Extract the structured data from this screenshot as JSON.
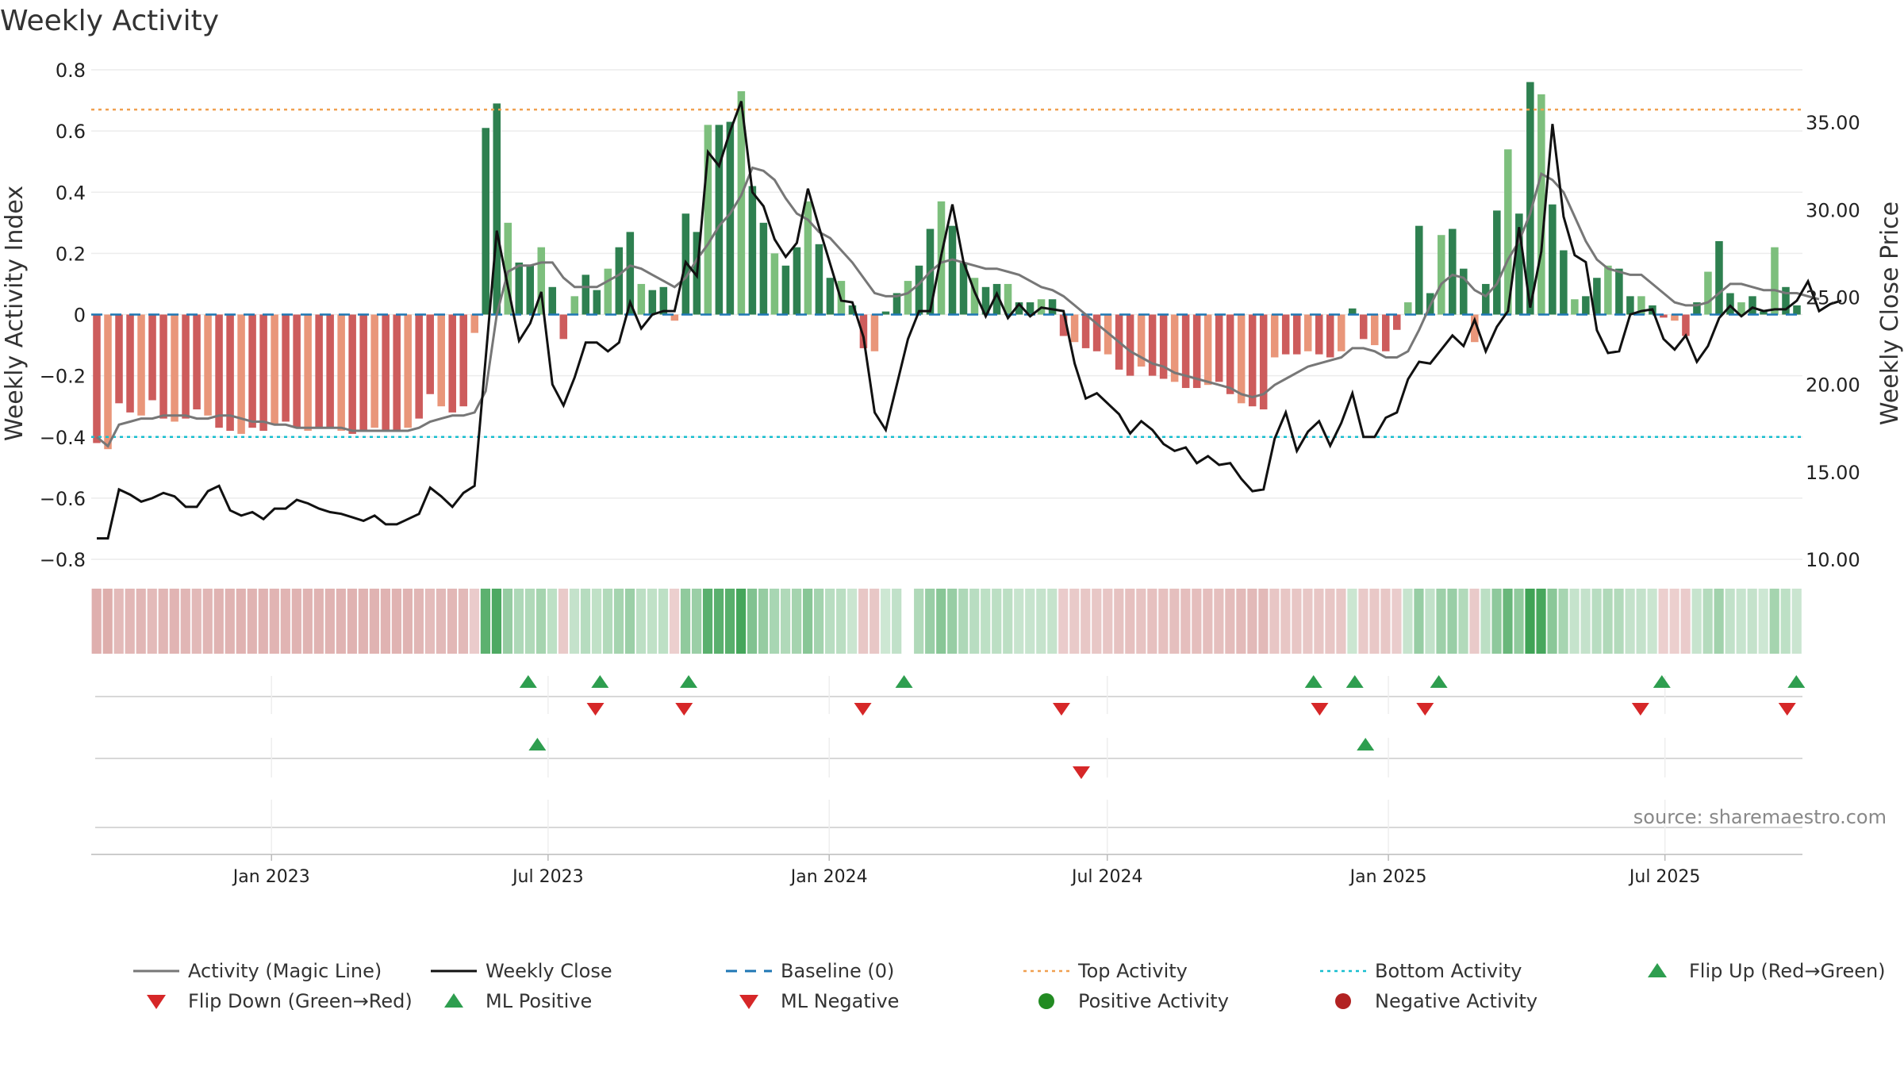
{
  "chart_data": {
    "type": "bar+line",
    "title": "Weekly Activity",
    "ylabel_left": "Weekly Activity Index",
    "ylabel_right": "Weekly Close Price",
    "ylim_left": [
      -0.8,
      0.8
    ],
    "ylim_right": [
      10,
      38
    ],
    "left_ticks": [
      0.8,
      0.6,
      0.4,
      0.2,
      0,
      -0.2,
      -0.4,
      -0.6,
      -0.8
    ],
    "left_tick_labels": [
      "0.8",
      "0.6",
      "0.4",
      "0.2",
      "0",
      "−0.2",
      "−0.4",
      "−0.6",
      "−0.8"
    ],
    "right_ticks": [
      35,
      30,
      25,
      20,
      15,
      10
    ],
    "right_tick_labels": [
      "35.00",
      "30.00",
      "25.00",
      "20.00",
      "15.00",
      "10.00"
    ],
    "x_start": "2022-09-05",
    "x_end": "2025-09-29",
    "x_tick_dates": [
      "2023-01-01",
      "2023-07-01",
      "2024-01-01",
      "2024-07-01",
      "2025-01-01",
      "2025-07-01"
    ],
    "x_tick_labels": [
      "Jan 2023",
      "Jul 2023",
      "Jan 2024",
      "Jul 2024",
      "Jan 2025",
      "Jul 2025"
    ],
    "top_activity": 0.67,
    "bottom_activity": -0.4,
    "baseline": 0,
    "activity_bars": [
      -0.42,
      -0.44,
      -0.29,
      -0.32,
      -0.33,
      -0.28,
      -0.34,
      -0.35,
      -0.34,
      -0.31,
      -0.33,
      -0.37,
      -0.38,
      -0.39,
      -0.37,
      -0.38,
      -0.36,
      -0.35,
      -0.37,
      -0.38,
      -0.37,
      -0.37,
      -0.38,
      -0.39,
      -0.38,
      -0.37,
      -0.38,
      -0.38,
      -0.37,
      -0.34,
      -0.26,
      -0.3,
      -0.32,
      -0.3,
      -0.06,
      0.61,
      0.69,
      0.3,
      0.17,
      0.16,
      0.22,
      0.09,
      -0.08,
      0.06,
      0.13,
      0.08,
      0.15,
      0.22,
      0.27,
      0.1,
      0.08,
      0.09,
      -0.02,
      0.33,
      0.27,
      0.62,
      0.62,
      0.63,
      0.73,
      0.42,
      0.3,
      0.2,
      0.16,
      0.22,
      0.37,
      0.23,
      0.12,
      0.11,
      0.03,
      -0.11,
      -0.12,
      0.01,
      0.07,
      0.11,
      0.16,
      0.28,
      0.37,
      0.29,
      0.17,
      0.12,
      0.09,
      0.1,
      0.1,
      0.04,
      0.04,
      0.05,
      0.05,
      -0.07,
      -0.09,
      -0.11,
      -0.12,
      -0.13,
      -0.18,
      -0.2,
      -0.17,
      -0.2,
      -0.21,
      -0.22,
      -0.24,
      -0.24,
      -0.23,
      -0.22,
      -0.26,
      -0.29,
      -0.3,
      -0.31,
      -0.14,
      -0.13,
      -0.13,
      -0.12,
      -0.13,
      -0.14,
      -0.12,
      0.02,
      -0.08,
      -0.1,
      -0.12,
      -0.05,
      0.04,
      0.29,
      0.07,
      0.26,
      0.28,
      0.15,
      -0.09,
      0.1,
      0.34,
      0.54,
      0.33,
      0.76,
      0.72,
      0.36,
      0.21,
      0.05,
      0.06,
      0.12,
      0.16,
      0.15,
      0.06,
      0.06,
      0.03,
      -0.01,
      -0.02,
      -0.07,
      0.04,
      0.14,
      0.24,
      0.07,
      0.04,
      0.06,
      0.01,
      0.22,
      0.09,
      0.03
    ],
    "magic_line": [
      -0.4,
      -0.43,
      -0.36,
      -0.35,
      -0.34,
      -0.34,
      -0.33,
      -0.33,
      -0.33,
      -0.34,
      -0.34,
      -0.33,
      -0.33,
      -0.34,
      -0.35,
      -0.35,
      -0.36,
      -0.36,
      -0.37,
      -0.37,
      -0.37,
      -0.37,
      -0.37,
      -0.38,
      -0.38,
      -0.38,
      -0.38,
      -0.38,
      -0.38,
      -0.37,
      -0.35,
      -0.34,
      -0.33,
      -0.33,
      -0.32,
      -0.25,
      0.0,
      0.14,
      0.16,
      0.16,
      0.17,
      0.17,
      0.12,
      0.09,
      0.09,
      0.09,
      0.11,
      0.13,
      0.16,
      0.15,
      0.13,
      0.11,
      0.09,
      0.12,
      0.18,
      0.23,
      0.29,
      0.33,
      0.39,
      0.48,
      0.47,
      0.44,
      0.38,
      0.33,
      0.31,
      0.27,
      0.25,
      0.21,
      0.17,
      0.12,
      0.07,
      0.06,
      0.06,
      0.07,
      0.1,
      0.14,
      0.17,
      0.18,
      0.17,
      0.16,
      0.15,
      0.15,
      0.14,
      0.13,
      0.11,
      0.09,
      0.08,
      0.06,
      0.03,
      0.0,
      -0.03,
      -0.06,
      -0.09,
      -0.12,
      -0.14,
      -0.16,
      -0.17,
      -0.19,
      -0.2,
      -0.21,
      -0.22,
      -0.23,
      -0.24,
      -0.26,
      -0.27,
      -0.26,
      -0.23,
      -0.21,
      -0.19,
      -0.17,
      -0.16,
      -0.15,
      -0.14,
      -0.11,
      -0.11,
      -0.12,
      -0.14,
      -0.14,
      -0.12,
      -0.05,
      0.03,
      0.1,
      0.13,
      0.12,
      0.08,
      0.06,
      0.1,
      0.18,
      0.24,
      0.33,
      0.46,
      0.44,
      0.4,
      0.32,
      0.24,
      0.18,
      0.15,
      0.14,
      0.13,
      0.13,
      0.1,
      0.07,
      0.04,
      0.03,
      0.03,
      0.04,
      0.07,
      0.1,
      0.1,
      0.09,
      0.08,
      0.08,
      0.07,
      0.07,
      0.06,
      0.05
    ],
    "weekly_close": [
      11.2,
      11.2,
      14.0,
      13.7,
      13.3,
      13.5,
      13.8,
      13.6,
      13.0,
      13.0,
      13.9,
      14.2,
      12.8,
      12.5,
      12.7,
      12.3,
      12.9,
      12.9,
      13.4,
      13.2,
      12.9,
      12.7,
      12.6,
      12.4,
      12.2,
      12.5,
      12.0,
      12.0,
      12.3,
      12.6,
      14.1,
      13.6,
      13.0,
      13.8,
      14.2,
      21.5,
      28.8,
      25.6,
      22.5,
      23.5,
      25.3,
      20.0,
      18.8,
      20.4,
      22.4,
      22.4,
      21.9,
      22.4,
      24.7,
      23.2,
      24.0,
      24.2,
      24.2,
      27.0,
      26.2,
      33.3,
      32.5,
      34.5,
      36.2,
      31.0,
      30.2,
      28.3,
      27.3,
      28.1,
      31.2,
      29.0,
      26.9,
      24.8,
      24.7,
      22.7,
      18.4,
      17.4,
      20.0,
      22.6,
      24.2,
      24.2,
      27.4,
      30.3,
      27.0,
      25.3,
      23.9,
      25.2,
      23.8,
      24.6,
      23.9,
      24.4,
      24.3,
      24.2,
      21.2,
      19.2,
      19.5,
      18.9,
      18.3,
      17.2,
      17.9,
      17.4,
      16.6,
      16.2,
      16.4,
      15.5,
      15.9,
      15.4,
      15.5,
      14.6,
      13.9,
      14.0,
      16.9,
      18.4,
      16.2,
      17.3,
      17.9,
      16.5,
      17.8,
      19.5,
      17.0,
      17.0,
      18.1,
      18.4,
      20.3,
      21.3,
      21.2,
      22.0,
      22.8,
      22.2,
      23.7,
      21.9,
      23.3,
      24.2,
      29.0,
      24.4,
      27.6,
      34.9,
      29.6,
      27.4,
      27.0,
      23.1,
      21.8,
      21.9,
      24.0,
      24.2,
      24.3,
      22.6,
      22.0,
      22.8,
      21.3,
      22.2,
      23.8,
      24.5,
      23.9,
      24.4,
      24.2,
      24.3,
      24.3,
      24.8,
      25.9,
      24.2,
      24.6,
      24.8
    ],
    "flip_up_dates": [
      "2023-06-18",
      "2023-08-04",
      "2023-10-01",
      "2024-02-19",
      "2024-11-13",
      "2024-12-10",
      "2025-02-03",
      "2025-06-29",
      "2025-09-25"
    ],
    "flip_down_dates": [
      "2023-08-01",
      "2023-09-28",
      "2024-01-23",
      "2024-06-01",
      "2024-11-17",
      "2025-01-25",
      "2025-06-15",
      "2025-09-19"
    ],
    "ml_positive_dates": [
      "2023-06-24",
      "2024-12-17"
    ],
    "ml_negative_dates": [
      "2024-06-14"
    ],
    "legend": [
      {
        "label": "Activity (Magic Line)",
        "kind": "line",
        "color": "#777777"
      },
      {
        "label": "Weekly Close",
        "kind": "line",
        "color": "#111111"
      },
      {
        "label": "Baseline (0)",
        "kind": "dash",
        "color": "#1f77b4"
      },
      {
        "label": "Top Activity",
        "kind": "dot",
        "color": "#f0a050"
      },
      {
        "label": "Bottom Activity",
        "kind": "dot",
        "color": "#17becf"
      },
      {
        "label": "Flip Up (Red→Green)",
        "kind": "tri-up",
        "color": "#2e9e4f"
      },
      {
        "label": "Flip Down (Green→Red)",
        "kind": "tri-down",
        "color": "#d62728"
      },
      {
        "label": "ML Positive",
        "kind": "tri-up",
        "color": "#2e9e4f"
      },
      {
        "label": "ML Negative",
        "kind": "tri-down",
        "color": "#d62728"
      },
      {
        "label": "Positive Activity",
        "kind": "circle",
        "color": "#228b22"
      },
      {
        "label": "Negative Activity",
        "kind": "circle",
        "color": "#b22222"
      }
    ],
    "source": "source: sharemaestro.com",
    "colors": {
      "pos_strong": "#2e8050",
      "pos_light": "#7dbf7d",
      "neg_strong": "#cd5c5c",
      "neg_light": "#e9967a",
      "magic_line": "#777777",
      "close_line": "#111111",
      "baseline": "#1f77b4",
      "top": "#f0a050",
      "bottom": "#17becf",
      "flip_up": "#2e9e4f",
      "flip_down": "#d62728"
    }
  }
}
